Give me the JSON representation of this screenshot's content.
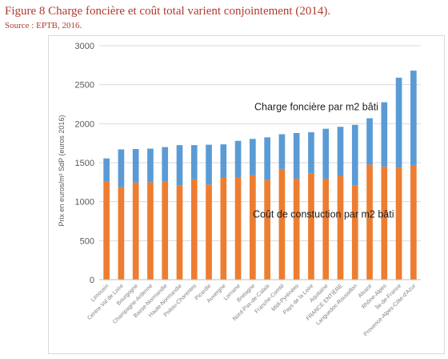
{
  "figure": {
    "title": "Figure 8 Charge foncière et coût total varient conjointement (2014).",
    "source": "Source : EPTB, 2016."
  },
  "chart_data": {
    "type": "bar",
    "stacked": true,
    "ylabel": "Prix en euros/m² SdP (euros 2016)",
    "ylim": [
      0,
      3000
    ],
    "yticks": [
      0,
      500,
      1000,
      1500,
      2000,
      2500,
      3000
    ],
    "grid": true,
    "categories": [
      "Limousin",
      "Centre-Val de Loire",
      "Bourgogne",
      "Champagne-Ardenne",
      "Basse-Normandie",
      "Haute-Normandie",
      "Poitou-Charentes",
      "Picardie",
      "Auvergne",
      "Lorraine",
      "Bretagne",
      "Nord-Pas-de-Calais",
      "Franche-Comté",
      "Midi-Pyrénées",
      "Pays de la Loire",
      "Aquitaine",
      "FRANCE ENTIÈRE",
      "Languedoc-Roussillon",
      "Alsace",
      "Rhône-Alpes",
      "Île-de-France",
      "Provence-Alpes-Côte-d'Azur"
    ],
    "series": [
      {
        "name": "Coût de constuction par m2 bâti",
        "color": "#ED7D31",
        "values": [
          1260,
          1185,
          1245,
          1250,
          1260,
          1210,
          1285,
          1220,
          1315,
          1315,
          1340,
          1280,
          1420,
          1295,
          1365,
          1295,
          1330,
          1210,
          1475,
          1450,
          1435,
          1470
        ]
      },
      {
        "name": "Charge foncière par m2 bâti",
        "color": "#5B9BD5",
        "values": [
          295,
          485,
          430,
          430,
          440,
          515,
          440,
          510,
          420,
          465,
          465,
          545,
          445,
          585,
          525,
          640,
          630,
          775,
          595,
          825,
          1155,
          1210
        ]
      }
    ],
    "annotations": [
      {
        "text": "Charge foncière par m2 bâti",
        "series": "Charge foncière par m2 bâti"
      },
      {
        "text": "Coût de constuction par m2 bâti",
        "series": "Coût de constuction par m2 bâti"
      }
    ]
  }
}
